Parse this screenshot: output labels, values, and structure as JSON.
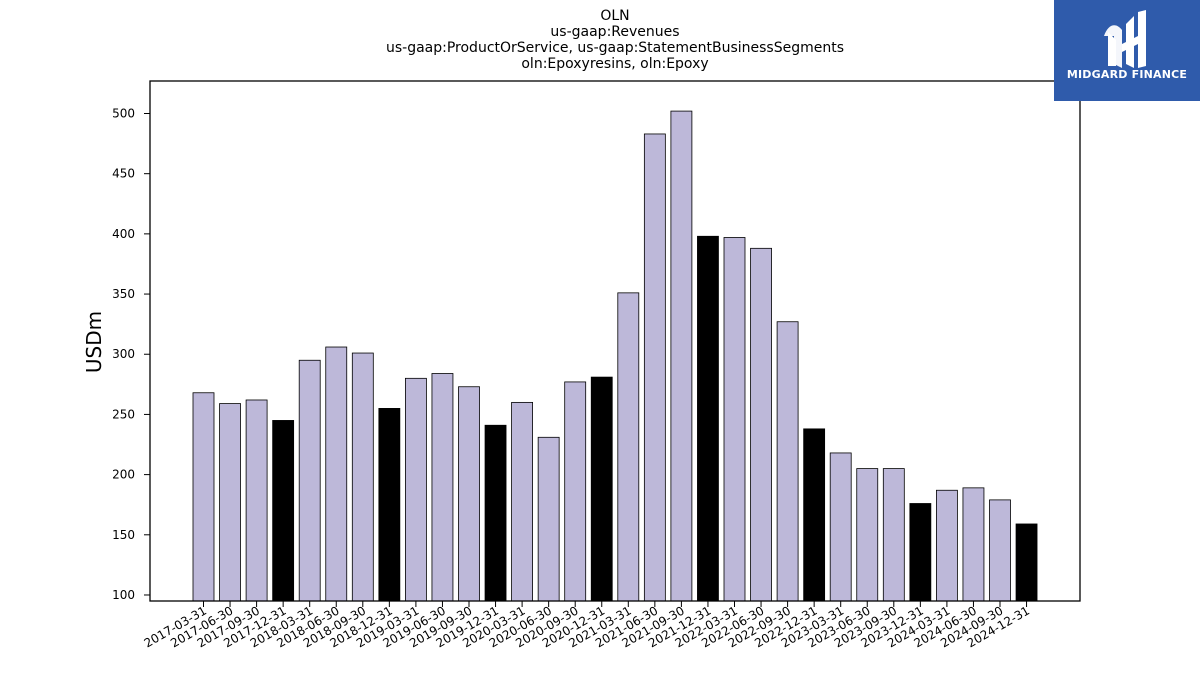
{
  "chart_data": {
    "type": "bar",
    "title_lines": [
      "OLN",
      "us-gaap:Revenues",
      "us-gaap:ProductOrService, us-gaap:StatementBusinessSegments",
      "oln:Epoxyresins, oln:Epoxy"
    ],
    "ylabel": "USDm",
    "xlabel": "",
    "ylim": [
      95,
      527
    ],
    "yticks": [
      100,
      150,
      200,
      250,
      300,
      350,
      400,
      450,
      500
    ],
    "categories": [
      "2017-03-31",
      "2017-06-30",
      "2017-09-30",
      "2017-12-31",
      "2018-03-31",
      "2018-06-30",
      "2018-09-30",
      "2018-12-31",
      "2019-03-31",
      "2019-06-30",
      "2019-09-30",
      "2019-12-31",
      "2020-03-31",
      "2020-06-30",
      "2020-09-30",
      "2020-12-31",
      "2021-03-31",
      "2021-06-30",
      "2021-09-30",
      "2021-12-31",
      "2022-03-31",
      "2022-06-30",
      "2022-09-30",
      "2022-12-31",
      "2023-03-31",
      "2023-06-30",
      "2023-09-30",
      "2023-12-31",
      "2024-03-31",
      "2024-06-30",
      "2024-09-30",
      "2024-12-31"
    ],
    "values": [
      268,
      259,
      262,
      245,
      295,
      306,
      301,
      255,
      280,
      284,
      273,
      241,
      260,
      231,
      277,
      281,
      351,
      483,
      502,
      398,
      397,
      388,
      327,
      238,
      218,
      205,
      205,
      176,
      187,
      189,
      179,
      159
    ],
    "bar_colors": {
      "quarter": "#bdb8d9",
      "year_end": "#000000",
      "edge": "#000000"
    },
    "grid": false
  },
  "logo": {
    "text": "MIDGARD FINANCE",
    "background": "#2f5bab",
    "icon": "midgard-logo-icon"
  }
}
